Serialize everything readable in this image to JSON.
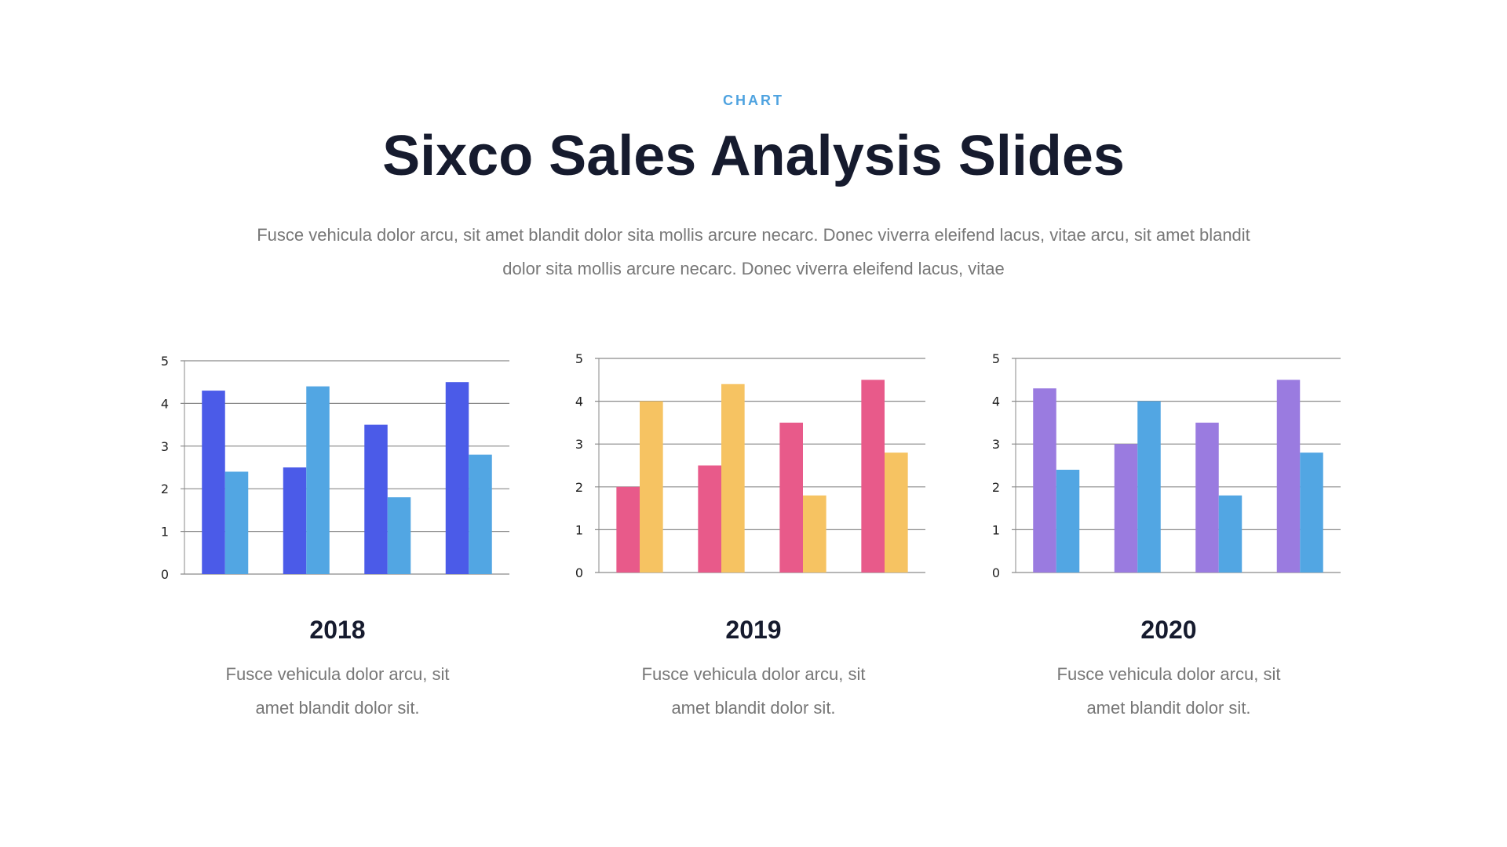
{
  "header": {
    "eyebrow": "CHART",
    "title": "Sixco Sales Analysis Slides",
    "intro": "Fusce vehicula dolor arcu, sit amet blandit dolor sita mollis arcure necarc. Donec viverra eleifend lacus, vitae arcu, sit amet blandit dolor sita mollis arcure necarc. Donec viverra eleifend lacus, vitae"
  },
  "chart_data": [
    {
      "type": "bar",
      "title": "2018",
      "ylim": [
        0,
        5
      ],
      "yticks": [
        "0",
        "1",
        "2",
        "3",
        "4",
        "5"
      ],
      "grid": true,
      "colors": [
        "#4B5BE8",
        "#52A6E3"
      ],
      "series": [
        {
          "values": [
            4.3,
            2.5,
            3.5,
            4.5
          ]
        },
        {
          "values": [
            2.4,
            4.4,
            1.8,
            2.8
          ]
        }
      ],
      "caption": [
        "Fusce vehicula dolor arcu, sit",
        "amet blandit dolor sit."
      ]
    },
    {
      "type": "bar",
      "title": "2019",
      "ylim": [
        0,
        5
      ],
      "yticks": [
        "0",
        "1",
        "2",
        "3",
        "4",
        "5"
      ],
      "grid": true,
      "colors": [
        "#E85A8A",
        "#F6C362"
      ],
      "series": [
        {
          "values": [
            2,
            2.5,
            3.5,
            4.5
          ]
        },
        {
          "values": [
            4,
            4.4,
            1.8,
            2.8
          ]
        }
      ],
      "caption": [
        "Fusce vehicula dolor arcu, sit",
        "amet blandit dolor sit."
      ]
    },
    {
      "type": "bar",
      "title": "2020",
      "ylim": [
        0,
        5
      ],
      "yticks": [
        "0",
        "1",
        "2",
        "3",
        "4",
        "5"
      ],
      "grid": true,
      "colors": [
        "#9A7BE0",
        "#52A6E3"
      ],
      "series": [
        {
          "values": [
            4.3,
            3,
            3.5,
            4.5
          ]
        },
        {
          "values": [
            2.4,
            4,
            1.8,
            2.8
          ]
        }
      ],
      "caption": [
        "Fusce vehicula dolor arcu, sit",
        "amet blandit dolor sit."
      ]
    }
  ]
}
